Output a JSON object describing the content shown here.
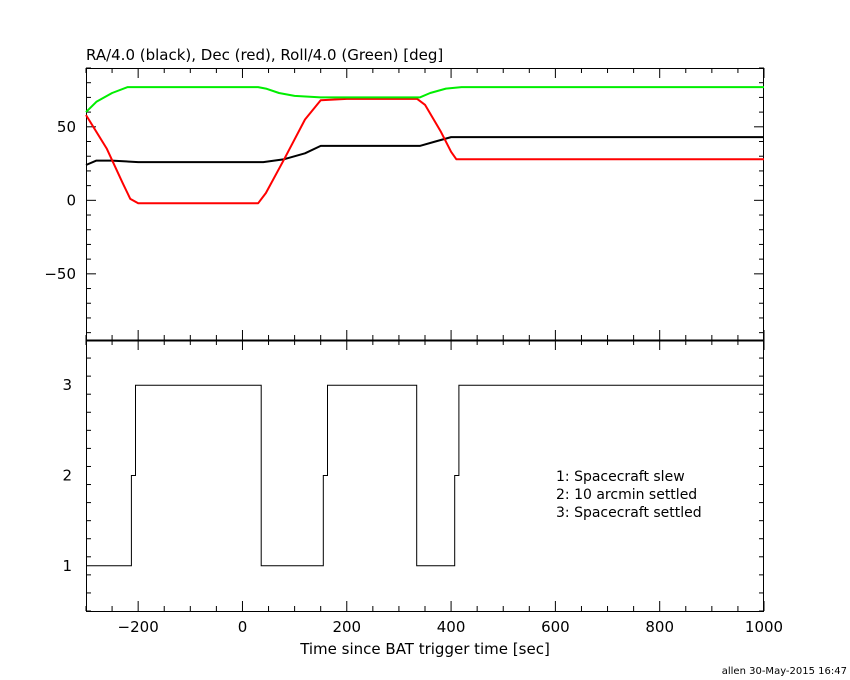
{
  "footer_stamp": "allen 30-May-2015 16:47",
  "chart_data": [
    {
      "type": "line",
      "title": "RA/4.0 (black), Dec (red), Roll/4.0 (Green) [deg]",
      "xlim": [
        -300,
        1000
      ],
      "ylim": [
        -95,
        90
      ],
      "yticks": [
        -50,
        0,
        50
      ],
      "grid": false,
      "series": [
        {
          "name": "RA/4.0",
          "color": "#000000",
          "x": [
            -300,
            -280,
            -250,
            -200,
            -150,
            -100,
            0,
            40,
            80,
            120,
            150,
            200,
            250,
            300,
            340,
            370,
            400,
            420,
            1000
          ],
          "y": [
            24,
            27,
            27,
            26,
            26,
            26,
            26,
            26,
            28,
            32,
            37,
            37,
            37,
            37,
            37,
            40,
            43,
            43,
            43
          ]
        },
        {
          "name": "Dec",
          "color": "#ff0000",
          "x": [
            -300,
            -260,
            -230,
            -215,
            -200,
            -180,
            -100,
            0,
            30,
            45,
            80,
            120,
            150,
            200,
            250,
            300,
            335,
            350,
            380,
            400,
            410,
            420,
            1000
          ],
          "y": [
            58,
            35,
            12,
            1,
            -2,
            -2,
            -2,
            -2,
            -2,
            5,
            28,
            55,
            68,
            69,
            69,
            69,
            69,
            65,
            47,
            33,
            28,
            28,
            28
          ]
        },
        {
          "name": "Roll/4.0",
          "color": "#00ee00",
          "x": [
            -300,
            -280,
            -250,
            -220,
            -200,
            -100,
            0,
            30,
            45,
            70,
            100,
            150,
            200,
            250,
            300,
            340,
            360,
            390,
            420,
            1000
          ],
          "y": [
            60,
            67,
            73,
            77,
            77,
            77,
            77,
            77,
            76,
            73,
            71,
            70,
            70,
            70,
            70,
            70,
            73,
            76,
            77,
            77
          ]
        }
      ]
    },
    {
      "type": "line",
      "xlabel": "Time since BAT trigger time [sec]",
      "xlim": [
        -300,
        1000
      ],
      "xticks": [
        -200,
        0,
        200,
        400,
        600,
        800,
        1000
      ],
      "ylim": [
        0.5,
        3.5
      ],
      "yticks": [
        1,
        2,
        3
      ],
      "grid": false,
      "legend_position": "right",
      "legend_lines": [
        "1: Spacecraft slew",
        "2: 10 arcmin settled",
        "3: Spacecraft settled"
      ],
      "series": [
        {
          "color": "#000000",
          "x": [
            -300,
            -213,
            -213,
            -205,
            -205,
            36,
            36,
            155,
            155,
            163,
            163,
            334,
            334,
            407,
            407,
            415,
            415,
            1000
          ],
          "y": [
            1,
            1,
            2,
            2,
            3,
            3,
            1,
            1,
            2,
            2,
            3,
            3,
            1,
            1,
            2,
            2,
            3,
            3
          ]
        }
      ]
    }
  ]
}
